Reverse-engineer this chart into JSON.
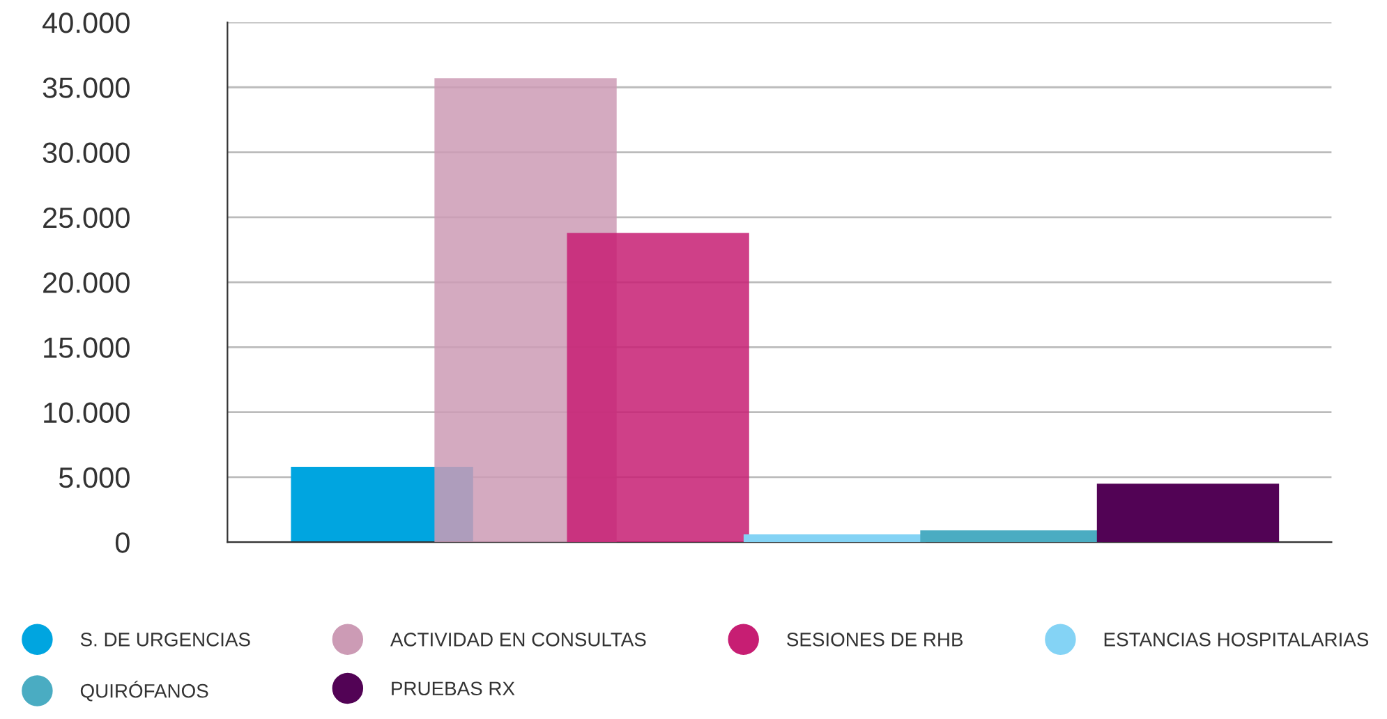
{
  "chart_data": {
    "type": "bar",
    "categories": [
      null
    ],
    "series": [
      {
        "name": "S. DE URGENCIAS",
        "color": "#00a5e0",
        "values": [
          5800
        ]
      },
      {
        "name": "ACTIVIDAD EN CONSULTAS",
        "color": "#cc9bb5",
        "values": [
          35700
        ]
      },
      {
        "name": "SESIONES DE RHB",
        "color": "#c71e73",
        "values": [
          23800
        ]
      },
      {
        "name": "ESTANCIAS HOSPITALARIAS",
        "color": "#84d3f5",
        "values": [
          600
        ]
      },
      {
        "name": "QUIRÓFANOS",
        "color": "#4aacc2",
        "values": [
          900
        ]
      },
      {
        "name": "PRUEBAS RX",
        "color": "#520355",
        "values": [
          4500
        ]
      }
    ],
    "ylim": [
      0,
      40000
    ],
    "yticks": [
      {
        "value": 0,
        "label": "0"
      },
      {
        "value": 5000,
        "label": "5.000"
      },
      {
        "value": 10000,
        "label": "10.000"
      },
      {
        "value": 15000,
        "label": "15.000"
      },
      {
        "value": 20000,
        "label": "20.000"
      },
      {
        "value": 25000,
        "label": "25.000"
      },
      {
        "value": 30000,
        "label": "30.000"
      },
      {
        "value": 35000,
        "label": "35.000"
      },
      {
        "value": 40000,
        "label": "40.000"
      }
    ],
    "tick_labels": "y",
    "grid": "y",
    "legend": "bottom",
    "marker": "circle"
  }
}
